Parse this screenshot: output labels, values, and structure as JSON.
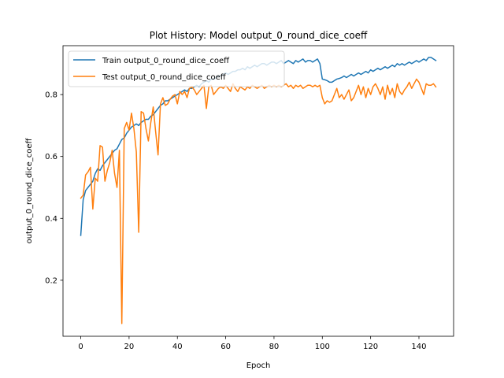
{
  "chart_data": {
    "type": "line",
    "title": "Plot History: Model output_0_round_dice_coeff",
    "xlabel": "Epoch",
    "ylabel": "output_0_round_dice_coeff",
    "xlim": [
      -7.35,
      154.35
    ],
    "ylim": [
      0.019,
      0.958
    ],
    "xticks": [
      0,
      20,
      40,
      60,
      80,
      100,
      120,
      140
    ],
    "yticks": [
      0.2,
      0.4,
      0.6,
      0.8
    ],
    "ytick_labels": [
      "0.2",
      "0.4",
      "0.6",
      "0.8"
    ],
    "grid": false,
    "legend_position": "upper left",
    "series": [
      {
        "name": "Train output_0_round_dice_coeff",
        "color": "#1f77b4",
        "values": [
          0.345,
          0.46,
          0.49,
          0.5,
          0.51,
          0.52,
          0.545,
          0.56,
          0.555,
          0.57,
          0.58,
          0.59,
          0.6,
          0.61,
          0.62,
          0.625,
          0.64,
          0.655,
          0.66,
          0.675,
          0.685,
          0.695,
          0.7,
          0.705,
          0.7,
          0.71,
          0.715,
          0.72,
          0.72,
          0.73,
          0.735,
          0.745,
          0.755,
          0.765,
          0.77,
          0.78,
          0.78,
          0.785,
          0.79,
          0.795,
          0.8,
          0.805,
          0.81,
          0.815,
          0.81,
          0.82,
          0.82,
          0.825,
          0.83,
          0.825,
          0.835,
          0.84,
          0.845,
          0.84,
          0.85,
          0.85,
          0.855,
          0.86,
          0.86,
          0.865,
          0.87,
          0.865,
          0.87,
          0.875,
          0.875,
          0.88,
          0.88,
          0.885,
          0.88,
          0.89,
          0.885,
          0.89,
          0.895,
          0.89,
          0.895,
          0.9,
          0.9,
          0.895,
          0.9,
          0.905,
          0.905,
          0.9,
          0.905,
          0.91,
          0.9,
          0.905,
          0.91,
          0.905,
          0.9,
          0.91,
          0.905,
          0.91,
          0.915,
          0.905,
          0.91,
          0.91,
          0.905,
          0.91,
          0.915,
          0.9,
          0.85,
          0.848,
          0.845,
          0.84,
          0.84,
          0.845,
          0.85,
          0.852,
          0.855,
          0.86,
          0.855,
          0.86,
          0.865,
          0.86,
          0.865,
          0.87,
          0.865,
          0.87,
          0.875,
          0.87,
          0.88,
          0.875,
          0.88,
          0.885,
          0.88,
          0.885,
          0.89,
          0.885,
          0.89,
          0.895,
          0.89,
          0.9,
          0.895,
          0.9,
          0.895,
          0.9,
          0.905,
          0.9,
          0.905,
          0.91,
          0.905,
          0.91,
          0.915,
          0.91,
          0.92,
          0.92,
          0.915,
          0.91
        ]
      },
      {
        "name": "Test output_0_round_dice_coeff",
        "color": "#ff7f0e",
        "values": [
          0.465,
          0.475,
          0.54,
          0.55,
          0.565,
          0.43,
          0.53,
          0.52,
          0.635,
          0.63,
          0.52,
          0.555,
          0.58,
          0.62,
          0.545,
          0.5,
          0.62,
          0.06,
          0.69,
          0.71,
          0.685,
          0.74,
          0.69,
          0.615,
          0.355,
          0.745,
          0.74,
          0.69,
          0.65,
          0.71,
          0.76,
          0.68,
          0.605,
          0.77,
          0.79,
          0.765,
          0.77,
          0.785,
          0.795,
          0.8,
          0.77,
          0.81,
          0.8,
          0.81,
          0.79,
          0.82,
          0.825,
          0.815,
          0.8,
          0.81,
          0.82,
          0.83,
          0.755,
          0.825,
          0.83,
          0.8,
          0.81,
          0.82,
          0.825,
          0.82,
          0.83,
          0.82,
          0.81,
          0.835,
          0.82,
          0.81,
          0.825,
          0.82,
          0.815,
          0.825,
          0.82,
          0.83,
          0.825,
          0.82,
          0.825,
          0.83,
          0.82,
          0.825,
          0.83,
          0.825,
          0.83,
          0.825,
          0.83,
          0.825,
          0.83,
          0.835,
          0.825,
          0.83,
          0.82,
          0.83,
          0.825,
          0.83,
          0.82,
          0.825,
          0.83,
          0.83,
          0.825,
          0.83,
          0.825,
          0.83,
          0.79,
          0.77,
          0.78,
          0.775,
          0.78,
          0.8,
          0.82,
          0.79,
          0.8,
          0.785,
          0.8,
          0.815,
          0.78,
          0.79,
          0.81,
          0.83,
          0.8,
          0.825,
          0.79,
          0.82,
          0.8,
          0.825,
          0.835,
          0.82,
          0.8,
          0.825,
          0.785,
          0.83,
          0.8,
          0.82,
          0.79,
          0.835,
          0.81,
          0.8,
          0.815,
          0.825,
          0.84,
          0.82,
          0.835,
          0.85,
          0.84,
          0.82,
          0.8,
          0.835,
          0.83,
          0.83,
          0.835,
          0.825
        ]
      }
    ]
  }
}
